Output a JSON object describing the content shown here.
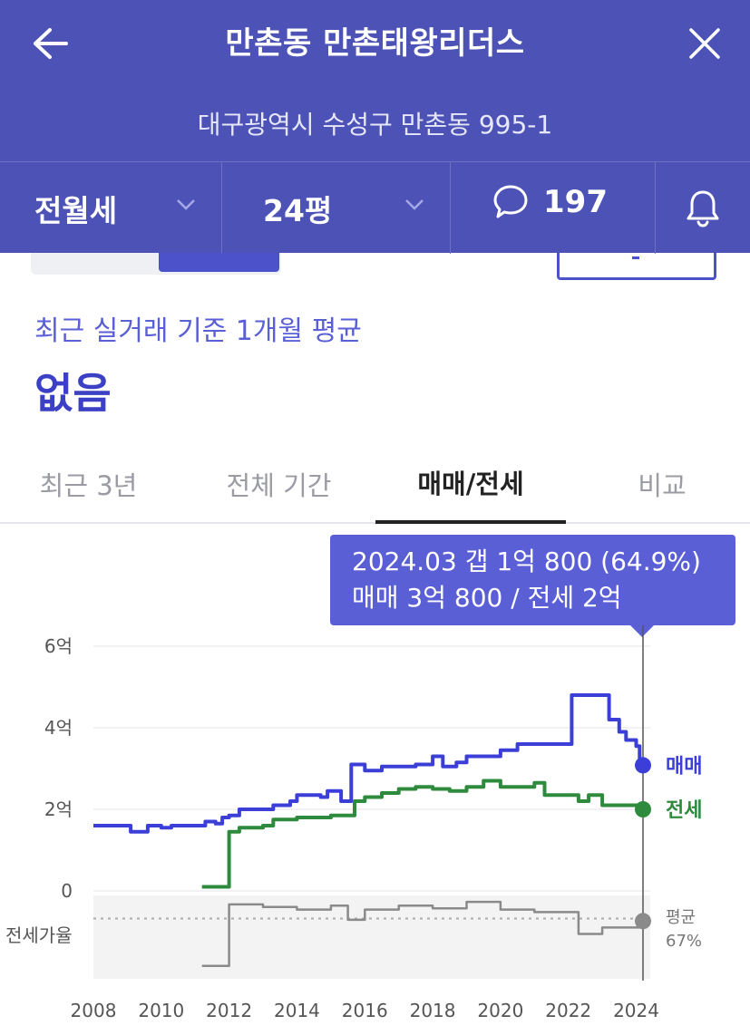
{
  "header": {
    "title": "만촌동 만촌태왕리더스",
    "address": "대구광역시 수성구 만촌동 995-1",
    "deal_type": "전월세",
    "size": "24평",
    "comment_count": "197"
  },
  "summary": {
    "avg_label": "최근 실거래 기준 1개월 평균",
    "avg_value": "없음"
  },
  "tabs": [
    {
      "label": "최근 3년",
      "active": false
    },
    {
      "label": "전체 기간",
      "active": false
    },
    {
      "label": "매매/전세",
      "active": true
    },
    {
      "label": "비교",
      "active": false
    }
  ],
  "tooltip": {
    "line1": "2024.03  갭 1억 800 (64.9%)",
    "line2": "매매 3억 800 / 전세 2억"
  },
  "colors": {
    "brand": "#4c52b6",
    "sale": "#3b3fd8",
    "jeonse": "#2e8b3e",
    "ratio": "#8a8a8a"
  },
  "chart_data": {
    "type": "line",
    "x_ticks": [
      "2008",
      "2010",
      "2012",
      "2014",
      "2016",
      "2018",
      "2020",
      "2022",
      "2024"
    ],
    "y_ticks": [
      "6억",
      "4억",
      "2억",
      "0"
    ],
    "ylim": [
      0,
      6
    ],
    "xlim": [
      2008,
      2025
    ],
    "ratio_label": "전세가율",
    "series": [
      {
        "name": "매매",
        "color": "#3b3fd8",
        "points": [
          [
            2008.0,
            1.6
          ],
          [
            2009.0,
            1.6
          ],
          [
            2009.1,
            1.45
          ],
          [
            2009.5,
            1.45
          ],
          [
            2009.6,
            1.6
          ],
          [
            2010.0,
            1.55
          ],
          [
            2010.3,
            1.6
          ],
          [
            2011.0,
            1.6
          ],
          [
            2011.3,
            1.7
          ],
          [
            2011.6,
            1.65
          ],
          [
            2011.8,
            1.8
          ],
          [
            2012.0,
            1.85
          ],
          [
            2012.3,
            2.0
          ],
          [
            2013.0,
            2.0
          ],
          [
            2013.3,
            2.1
          ],
          [
            2013.8,
            2.2
          ],
          [
            2014.0,
            2.35
          ],
          [
            2014.5,
            2.35
          ],
          [
            2014.7,
            2.3
          ],
          [
            2014.9,
            2.45
          ],
          [
            2015.3,
            2.2
          ],
          [
            2015.5,
            2.2
          ],
          [
            2015.6,
            3.1
          ],
          [
            2016.0,
            2.95
          ],
          [
            2016.5,
            3.05
          ],
          [
            2017.0,
            3.05
          ],
          [
            2017.5,
            3.1
          ],
          [
            2018.0,
            3.3
          ],
          [
            2018.3,
            3.05
          ],
          [
            2018.7,
            3.15
          ],
          [
            2019.0,
            3.3
          ],
          [
            2019.5,
            3.3
          ],
          [
            2020.0,
            3.45
          ],
          [
            2020.5,
            3.6
          ],
          [
            2021.0,
            3.6
          ],
          [
            2021.5,
            3.6
          ],
          [
            2022.0,
            3.6
          ],
          [
            2022.1,
            4.8
          ],
          [
            2023.0,
            4.8
          ],
          [
            2023.2,
            4.2
          ],
          [
            2023.5,
            3.9
          ],
          [
            2023.7,
            3.7
          ],
          [
            2024.0,
            3.55
          ],
          [
            2024.1,
            3.15
          ],
          [
            2024.2,
            3.08
          ]
        ]
      },
      {
        "name": "전세",
        "color": "#2e8b3e",
        "points": [
          [
            2011.2,
            0.1
          ],
          [
            2011.9,
            0.1
          ],
          [
            2012.0,
            1.45
          ],
          [
            2012.3,
            1.55
          ],
          [
            2013.0,
            1.6
          ],
          [
            2013.3,
            1.75
          ],
          [
            2014.0,
            1.8
          ],
          [
            2014.5,
            1.8
          ],
          [
            2015.0,
            1.85
          ],
          [
            2015.6,
            1.85
          ],
          [
            2015.7,
            2.2
          ],
          [
            2016.0,
            2.3
          ],
          [
            2016.5,
            2.4
          ],
          [
            2017.0,
            2.5
          ],
          [
            2017.5,
            2.55
          ],
          [
            2018.0,
            2.5
          ],
          [
            2018.5,
            2.45
          ],
          [
            2019.0,
            2.55
          ],
          [
            2019.5,
            2.7
          ],
          [
            2020.0,
            2.55
          ],
          [
            2020.5,
            2.55
          ],
          [
            2021.0,
            2.65
          ],
          [
            2021.3,
            2.35
          ],
          [
            2022.0,
            2.35
          ],
          [
            2022.3,
            2.2
          ],
          [
            2022.6,
            2.35
          ],
          [
            2023.0,
            2.1
          ],
          [
            2024.2,
            2.0
          ]
        ]
      },
      {
        "name": "평균",
        "color": "#8a8a8a",
        "value_label": "67%",
        "points": [
          [
            2011.2,
            0.3
          ],
          [
            2011.9,
            0.3
          ],
          [
            2012.0,
            0.78
          ],
          [
            2013.0,
            0.76
          ],
          [
            2014.0,
            0.74
          ],
          [
            2015.0,
            0.77
          ],
          [
            2015.5,
            0.66
          ],
          [
            2016.0,
            0.74
          ],
          [
            2017.0,
            0.77
          ],
          [
            2018.0,
            0.75
          ],
          [
            2019.0,
            0.8
          ],
          [
            2020.0,
            0.74
          ],
          [
            2021.0,
            0.72
          ],
          [
            2022.0,
            0.72
          ],
          [
            2022.3,
            0.55
          ],
          [
            2023.0,
            0.6
          ],
          [
            2024.2,
            0.65
          ]
        ]
      }
    ]
  }
}
